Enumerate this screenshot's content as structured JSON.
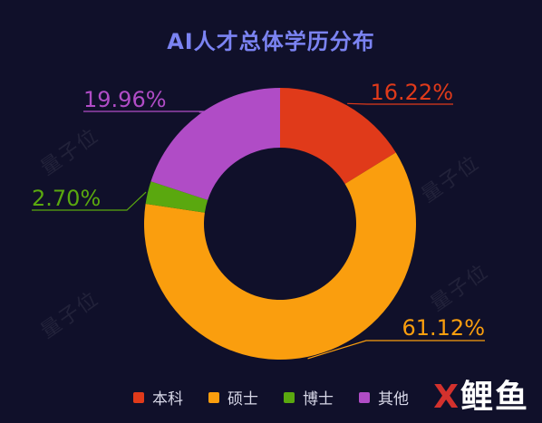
{
  "chart_data": {
    "type": "pie",
    "title": "AI人才总体学历分布",
    "categories": [
      "本科",
      "硕士",
      "博士",
      "其他"
    ],
    "values": [
      16.22,
      61.12,
      2.7,
      19.96
    ],
    "labels": [
      "16.22%",
      "61.12%",
      "2.70%",
      "19.96%"
    ],
    "colors": [
      "#e03a1a",
      "#fa9e0e",
      "#5aa80f",
      "#b04cc6"
    ],
    "donut": true,
    "legend_position": "bottom"
  },
  "watermark": "量子位",
  "brand": {
    "part1": "X",
    "part2": "鲤鱼"
  }
}
